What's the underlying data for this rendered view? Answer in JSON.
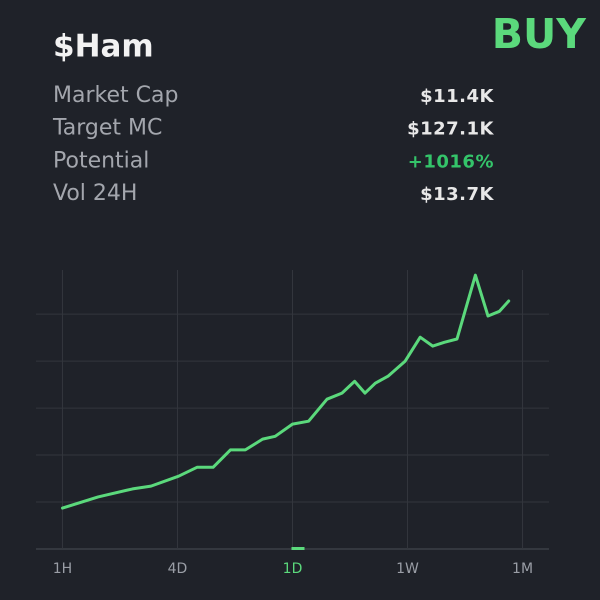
{
  "header": {
    "title": "$Ham",
    "action": "BUY"
  },
  "stats": [
    {
      "label": "Market Cap",
      "value": "$11.4K"
    },
    {
      "label": "Target MC",
      "value": "$127.1K"
    },
    {
      "label": "Potential",
      "value": "+1016%"
    },
    {
      "label": "Vol 24H",
      "value": "$13.7K"
    }
  ],
  "chart_data": {
    "type": "line",
    "color": "#5bd97c",
    "grid": true,
    "x": [
      0,
      0.31,
      0.61,
      0.77,
      1.01,
      1.17,
      1.31,
      1.46,
      1.59,
      1.74,
      1.85,
      2.0,
      2.14,
      2.3,
      2.43,
      2.54,
      2.63,
      2.72,
      2.83,
      2.98,
      3.11,
      3.22,
      3.32,
      3.43,
      3.59,
      3.7,
      3.8,
      3.88
    ],
    "values": [
      0.87,
      1.11,
      1.28,
      1.34,
      1.55,
      1.74,
      1.74,
      2.11,
      2.11,
      2.34,
      2.4,
      2.66,
      2.72,
      3.19,
      3.32,
      3.57,
      3.32,
      3.53,
      3.68,
      4.0,
      4.51,
      4.32,
      4.4,
      4.47,
      5.83,
      4.96,
      5.06,
      5.28
    ],
    "xlim": [
      -0.23,
      4.23
    ],
    "xticks": [
      {
        "value": 0,
        "label": "1H"
      },
      {
        "value": 1,
        "label": "4D"
      },
      {
        "value": 2,
        "label": "1D"
      },
      {
        "value": 3,
        "label": "1W"
      },
      {
        "value": 4,
        "label": "1M"
      }
    ],
    "ylim": [
      0,
      5.94
    ],
    "yticks": [
      0,
      1,
      2,
      3,
      4,
      5
    ]
  }
}
